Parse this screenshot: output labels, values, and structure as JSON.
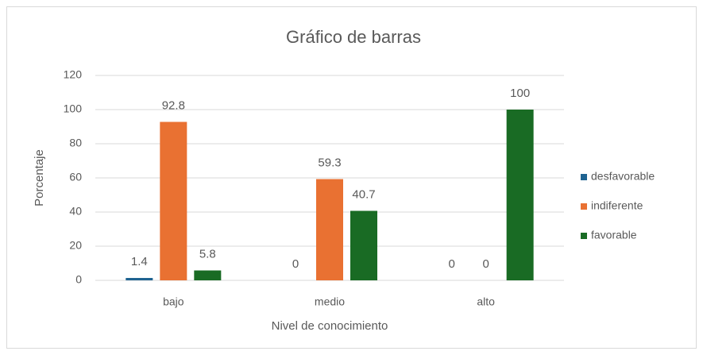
{
  "chart_data": {
    "type": "bar",
    "title": "Gráfico de barras",
    "x_label": "Nivel de conocimiento",
    "y_label": "Porcentaje",
    "categories": [
      "bajo",
      "medio",
      "alto"
    ],
    "series": [
      {
        "name": "desfavorable",
        "color": "#1f6391",
        "values": [
          1.4,
          0,
          0
        ]
      },
      {
        "name": "indiferente",
        "color": "#e97132",
        "values": [
          92.8,
          59.3,
          0
        ]
      },
      {
        "name": "favorable",
        "color": "#196b24",
        "values": [
          5.8,
          40.7,
          100
        ]
      }
    ],
    "ylim": [
      0,
      120
    ],
    "yticks": [
      0,
      20,
      40,
      60,
      80,
      100,
      120
    ],
    "grid": true,
    "legend": "right"
  }
}
